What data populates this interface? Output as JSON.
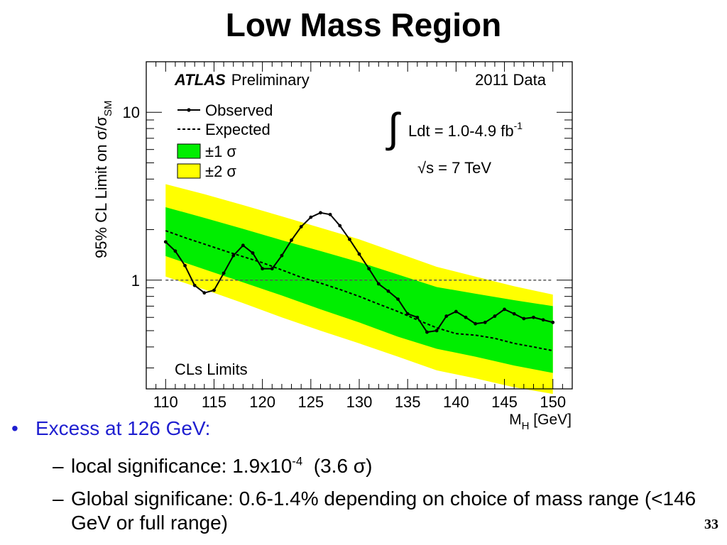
{
  "slide": {
    "title": "Low Mass Region",
    "page_number": "33"
  },
  "bullets": {
    "main": "Excess at 126 GeV:",
    "sub1_prefix": "local significance: 1.9x10",
    "sub1_exp": "-4",
    "sub1_suffix": "  (3.6 σ)",
    "sub2": "Global significane: 0.6-1.4% depending on choice of mass range (<146 GeV or full range)"
  },
  "chart_data": {
    "type": "line",
    "y_scale": "log",
    "xlim": [
      108,
      152
    ],
    "ylim": [
      0.225,
      20
    ],
    "x_ticks": [
      110,
      115,
      120,
      125,
      130,
      135,
      140,
      145,
      150
    ],
    "y_ticks": [
      {
        "value": 1,
        "label": "1"
      },
      {
        "value": 10,
        "label": "10"
      }
    ],
    "xlabel_main": "M",
    "xlabel_sub": "H",
    "xlabel_unit": " [GeV]",
    "ylabel_main": "95% CL Limit on σ/σ",
    "ylabel_sub": "SM",
    "annotations": {
      "experiment": "ATLAS",
      "status": "Preliminary",
      "dataset": "2011 Data",
      "integral_symbol": "∫",
      "lumi_text": "Ldt = 1.0-4.9 fb",
      "lumi_exp": "-1",
      "energy_text": "√s = 7 TeV",
      "method": "CLs Limits"
    },
    "legend": {
      "placement": "top-left",
      "observed": "Observed",
      "expected": "Expected",
      "band1": "±1 σ",
      "band2": "±2 σ"
    },
    "colors": {
      "band1": "#00ee00",
      "band2": "#ffff00",
      "observed": "#000000",
      "expected": "#000000",
      "reference": "#555555"
    },
    "reference_line": 1,
    "observed": {
      "x": [
        110,
        111,
        112,
        113,
        114,
        115,
        116,
        117,
        118,
        119,
        120,
        121,
        122,
        123,
        124,
        125,
        126,
        127,
        128,
        129,
        130,
        131,
        132,
        133,
        134,
        135,
        136,
        137,
        138,
        139,
        140,
        141,
        142,
        143,
        144,
        145,
        146,
        147,
        148,
        149,
        150
      ],
      "y": [
        1.69,
        1.49,
        1.22,
        0.93,
        0.84,
        0.87,
        1.1,
        1.4,
        1.61,
        1.45,
        1.17,
        1.17,
        1.4,
        1.73,
        2.08,
        2.37,
        2.52,
        2.46,
        2.11,
        1.75,
        1.43,
        1.17,
        0.95,
        0.86,
        0.77,
        0.63,
        0.6,
        0.49,
        0.5,
        0.61,
        0.65,
        0.6,
        0.55,
        0.56,
        0.61,
        0.67,
        0.63,
        0.59,
        0.6,
        0.58,
        0.56
      ]
    },
    "expected": {
      "x": [
        110,
        112,
        114,
        116,
        118,
        120,
        122,
        124,
        126,
        128,
        130,
        132,
        134,
        136,
        138,
        140,
        142,
        144,
        146,
        148,
        150
      ],
      "y": [
        1.97,
        1.79,
        1.64,
        1.5,
        1.38,
        1.27,
        1.15,
        1.04,
        0.96,
        0.88,
        0.8,
        0.72,
        0.65,
        0.58,
        0.52,
        0.48,
        0.47,
        0.45,
        0.42,
        0.4,
        0.38
      ]
    },
    "band_1sigma": {
      "x": [
        110,
        114,
        118,
        122,
        126,
        130,
        134,
        138,
        142,
        146,
        150
      ],
      "lower": [
        1.39,
        1.16,
        0.97,
        0.81,
        0.67,
        0.56,
        0.46,
        0.39,
        0.35,
        0.31,
        0.28
      ],
      "upper": [
        2.72,
        2.35,
        2.02,
        1.73,
        1.49,
        1.28,
        1.08,
        0.91,
        0.83,
        0.76,
        0.7
      ]
    },
    "band_2sigma": {
      "x": [
        110,
        114,
        118,
        122,
        126,
        130,
        134,
        138,
        142,
        146,
        150
      ],
      "lower": [
        1.05,
        0.88,
        0.73,
        0.6,
        0.5,
        0.42,
        0.35,
        0.29,
        0.26,
        0.23,
        0.21
      ],
      "upper": [
        3.73,
        3.25,
        2.8,
        2.4,
        2.05,
        1.75,
        1.45,
        1.2,
        1.05,
        0.92,
        0.82
      ]
    }
  }
}
